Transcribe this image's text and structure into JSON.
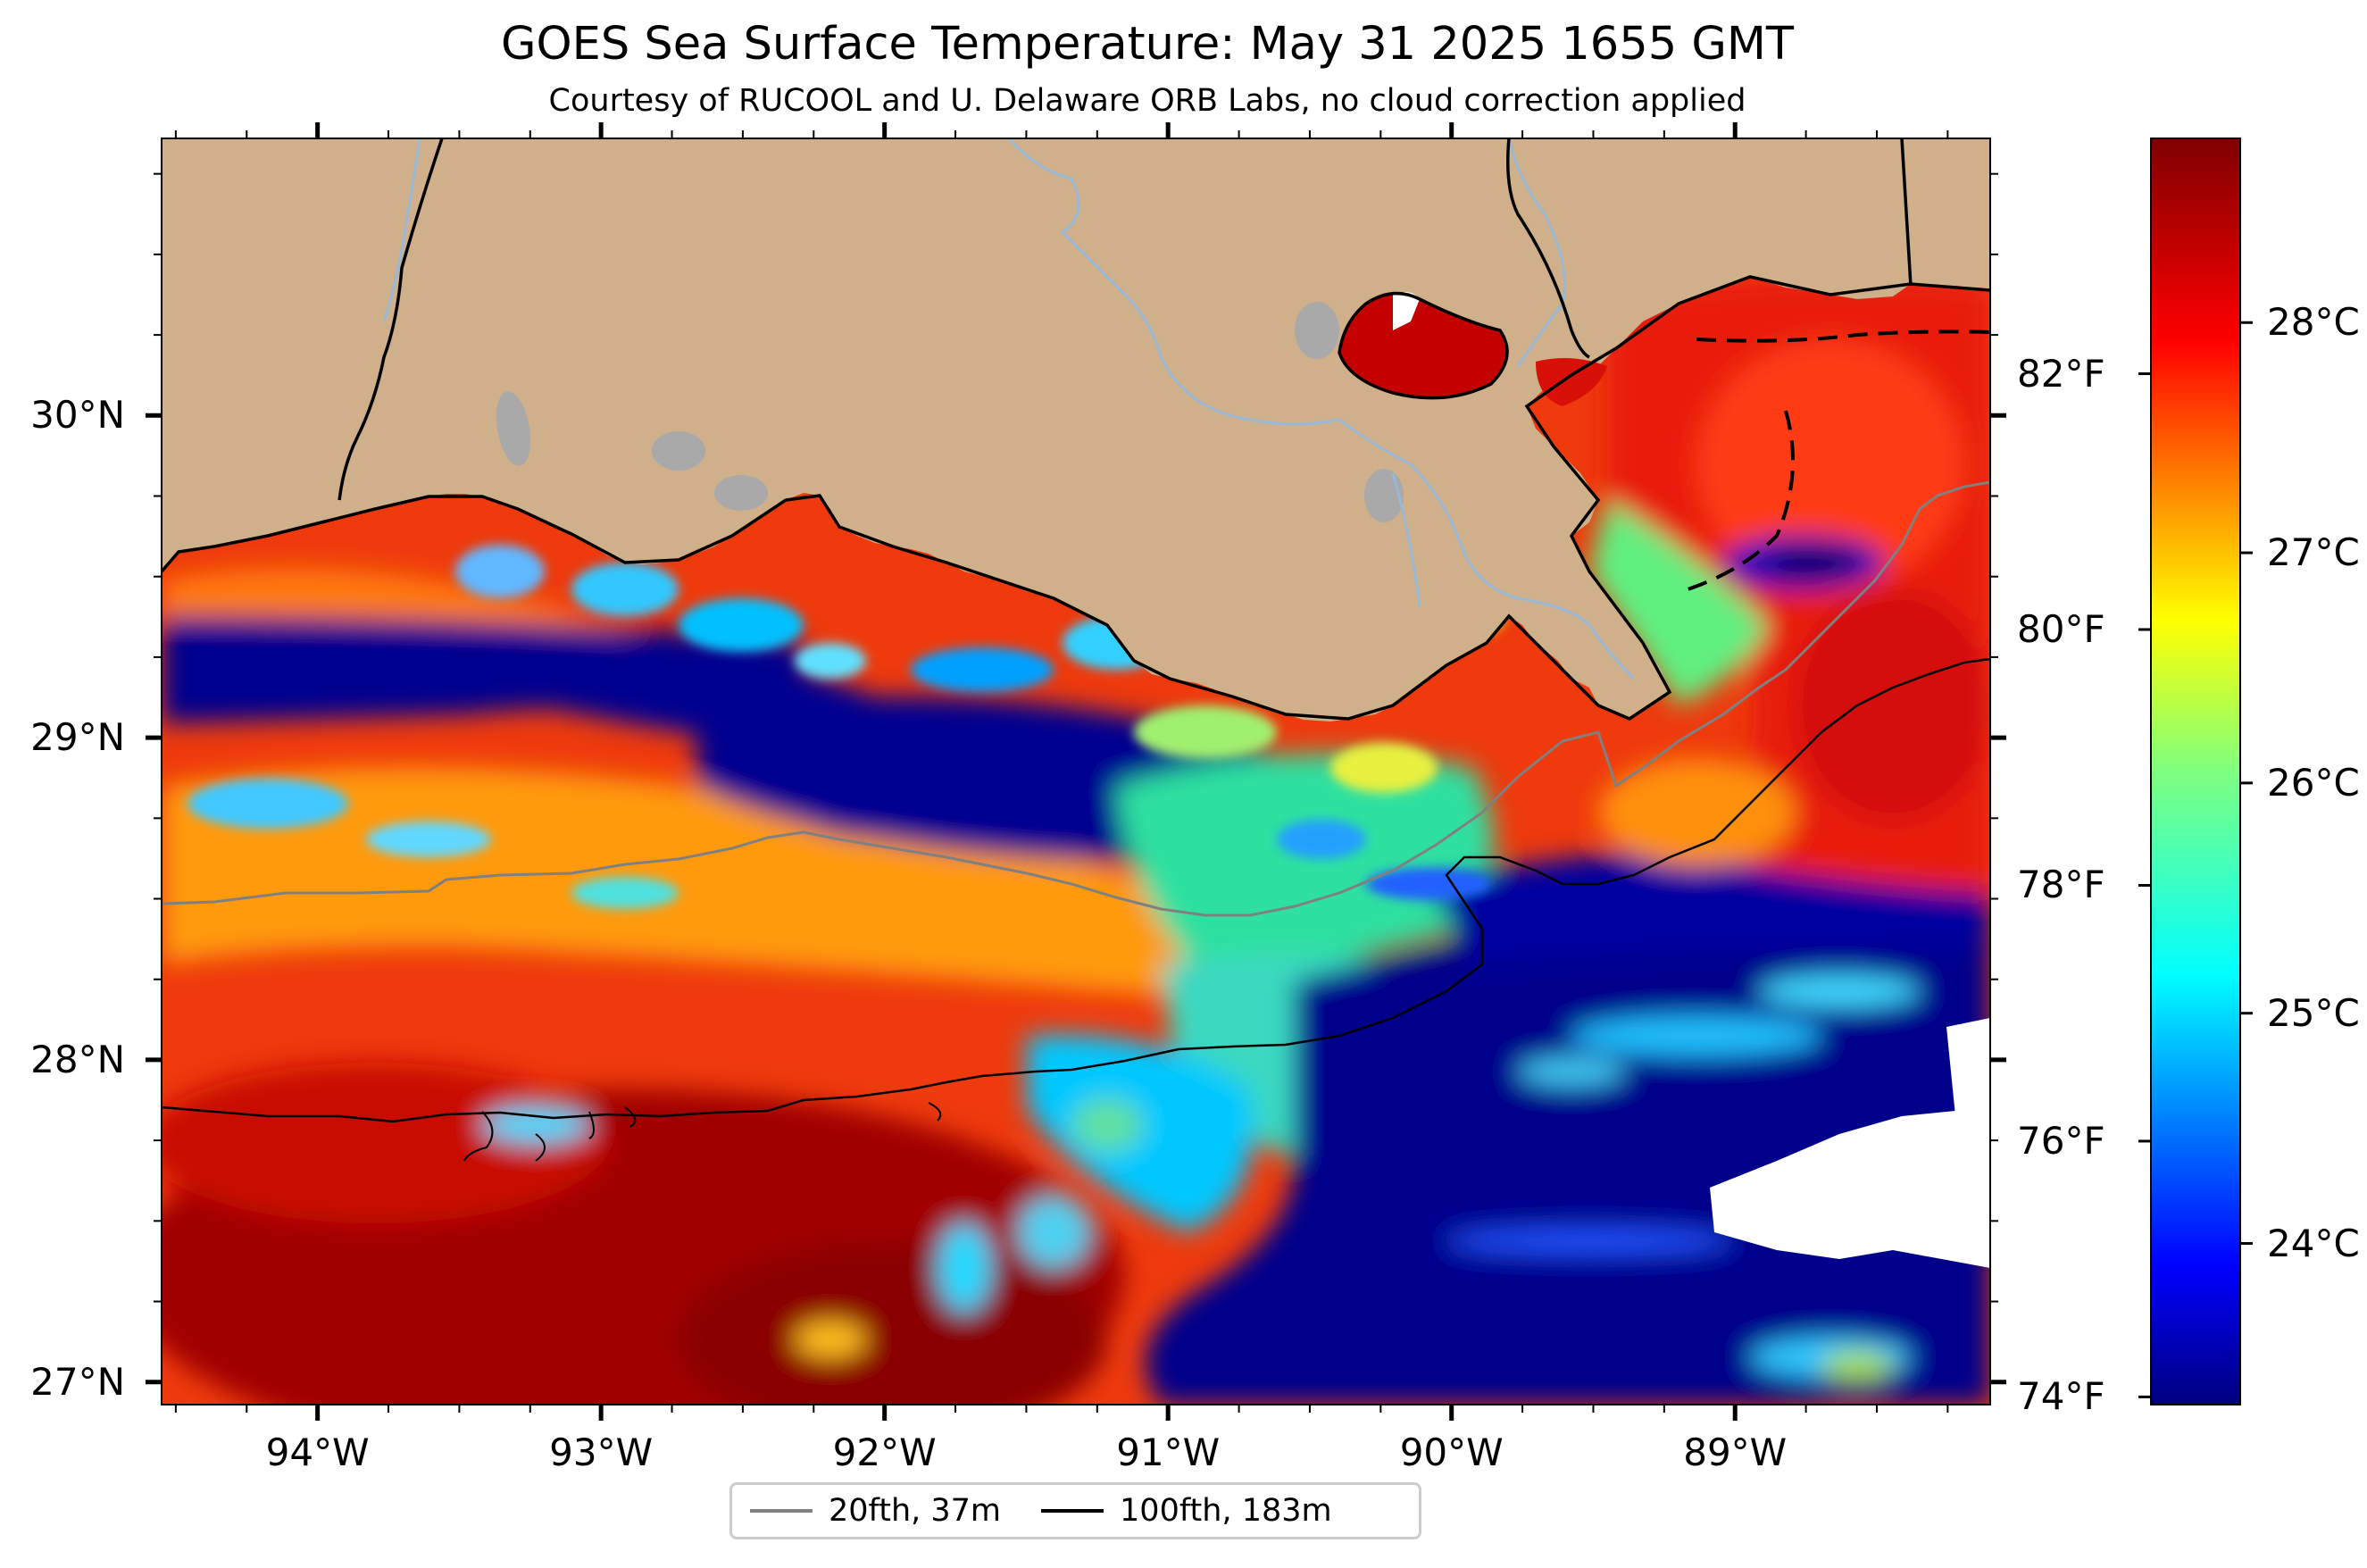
{
  "title": "GOES Sea Surface Temperature: May 31 2025 1655 GMT",
  "subtitle": "Courtesy of RUCOOL and U. Delaware ORB Labs, no cloud correction applied",
  "map": {
    "extent": {
      "lon_min": -94.55,
      "lon_max": -88.1,
      "lat_min": 26.93,
      "lat_max": 30.86
    },
    "lat_ticks": [
      {
        "value": 27,
        "label": "27°N"
      },
      {
        "value": 28,
        "label": "28°N"
      },
      {
        "value": 29,
        "label": "29°N"
      },
      {
        "value": 30,
        "label": "30°N"
      }
    ],
    "lon_ticks": [
      {
        "value": -94,
        "label": "94°W"
      },
      {
        "value": -93,
        "label": "93°W"
      },
      {
        "value": -92,
        "label": "92°W"
      },
      {
        "value": -91,
        "label": "91°W"
      },
      {
        "value": -90,
        "label": "90°W"
      },
      {
        "value": -89,
        "label": "89°W"
      }
    ],
    "colors": {
      "land": "#cfb08a",
      "lakes": "#a9a9a9",
      "rivers": "#99b8d8",
      "no_data": "#ffffff"
    },
    "legend": [
      {
        "label": "20fth, 37m",
        "color": "#808080"
      },
      {
        "label": "100fth, 183m",
        "color": "#000000"
      }
    ]
  },
  "colorbar": {
    "colormap": "jet",
    "celsius_range": [
      23.3,
      28.8
    ],
    "celsius_ticks": [
      {
        "value": 24,
        "label": "24°C"
      },
      {
        "value": 25,
        "label": "25°C"
      },
      {
        "value": 26,
        "label": "26°C"
      },
      {
        "value": 27,
        "label": "27°C"
      },
      {
        "value": 28,
        "label": "28°C"
      }
    ],
    "fahrenheit_ticks": [
      {
        "value": 74,
        "label": "74°F"
      },
      {
        "value": 76,
        "label": "76°F"
      },
      {
        "value": 78,
        "label": "78°F"
      },
      {
        "value": 80,
        "label": "80°F"
      },
      {
        "value": 82,
        "label": "82°F"
      }
    ]
  }
}
